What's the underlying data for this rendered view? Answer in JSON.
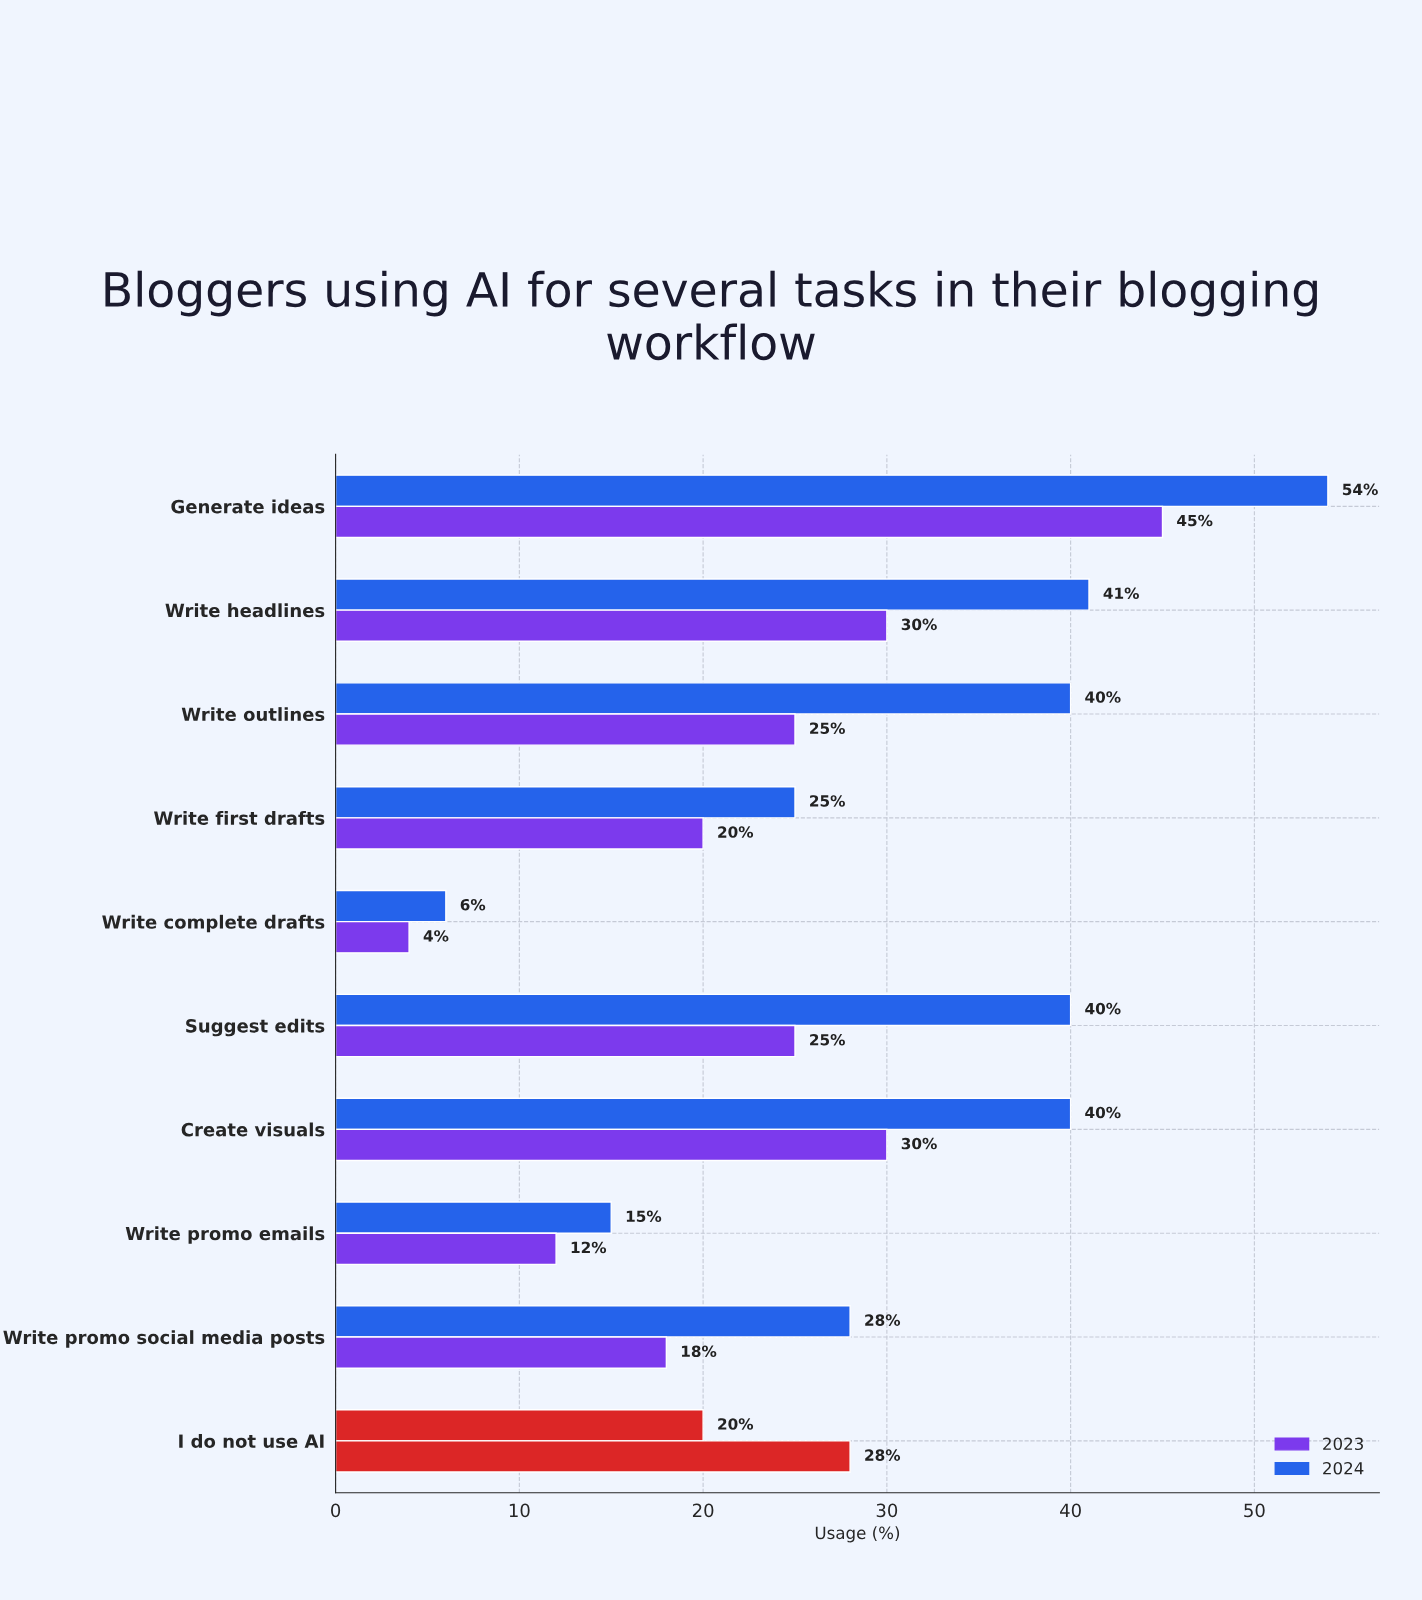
{
  "chart_data": {
    "type": "bar",
    "orientation": "horizontal",
    "title": "Bloggers using AI for several tasks in their blogging workflow",
    "categories": [
      "Generate ideas",
      "Write headlines",
      "Write outlines",
      "Write first drafts",
      "Write complete drafts",
      "Suggest edits",
      "Create visuals",
      "Write promo emails",
      "Write promo social media posts",
      "I do not use AI"
    ],
    "series": [
      {
        "name": "2024",
        "color": "#2563eb",
        "colors": [
          "#2563eb",
          "#2563eb",
          "#2563eb",
          "#2563eb",
          "#2563eb",
          "#2563eb",
          "#2563eb",
          "#2563eb",
          "#2563eb",
          "#dc2626"
        ],
        "values": [
          54,
          41,
          40,
          25,
          6,
          40,
          40,
          15,
          28,
          20
        ],
        "value_labels": [
          "54%",
          "41%",
          "40%",
          "25%",
          "6%",
          "40%",
          "40%",
          "15%",
          "28%",
          "20%"
        ]
      },
      {
        "name": "2023",
        "color": "#7c3aed",
        "colors": [
          "#7c3aed",
          "#7c3aed",
          "#7c3aed",
          "#7c3aed",
          "#7c3aed",
          "#7c3aed",
          "#7c3aed",
          "#7c3aed",
          "#7c3aed",
          "#dc2626"
        ],
        "values": [
          45,
          30,
          25,
          20,
          4,
          25,
          30,
          12,
          18,
          28
        ],
        "value_labels": [
          "45%",
          "30%",
          "25%",
          "20%",
          "4%",
          "25%",
          "30%",
          "12%",
          "18%",
          "28%"
        ]
      }
    ],
    "xlabel": "Usage (%)",
    "xlim": [
      0,
      56.8
    ],
    "xticks": [
      0,
      10,
      20,
      30,
      40,
      50
    ],
    "grid": true,
    "legend": "bottom right"
  }
}
